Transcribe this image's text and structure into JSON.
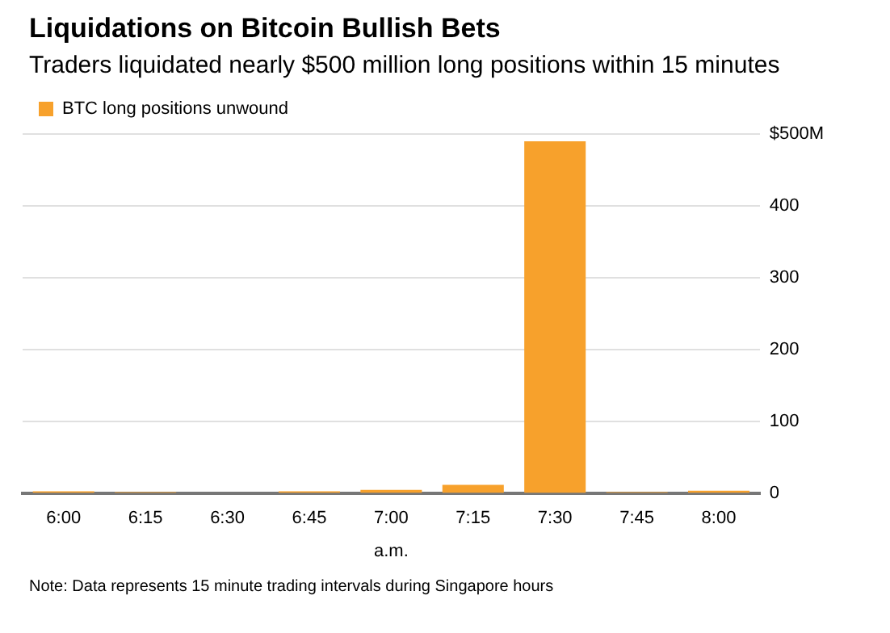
{
  "chart_data": {
    "type": "bar",
    "title": "Liquidations on Bitcoin Bullish Bets",
    "subtitle": "Traders liquidated nearly $500 million long positions within 15 minutes",
    "xlabel": "a.m.",
    "categories": [
      "6:00",
      "6:15",
      "6:30",
      "6:45",
      "7:00",
      "7:15",
      "7:30",
      "7:45",
      "8:00"
    ],
    "series": [
      {
        "name": "BTC long positions unwound",
        "color": "#f7a12c",
        "values": [
          3,
          2,
          0,
          3,
          5,
          12,
          490,
          2,
          4
        ]
      }
    ],
    "ylim": [
      0,
      500
    ],
    "yticks": [
      0,
      100,
      200,
      300,
      400,
      {
        "value": 500,
        "label": "$500M"
      }
    ],
    "grid": "y",
    "legend": "top left",
    "annotations": [
      "Note: Data represents 15 minute trading intervals during Singapore hours"
    ]
  }
}
